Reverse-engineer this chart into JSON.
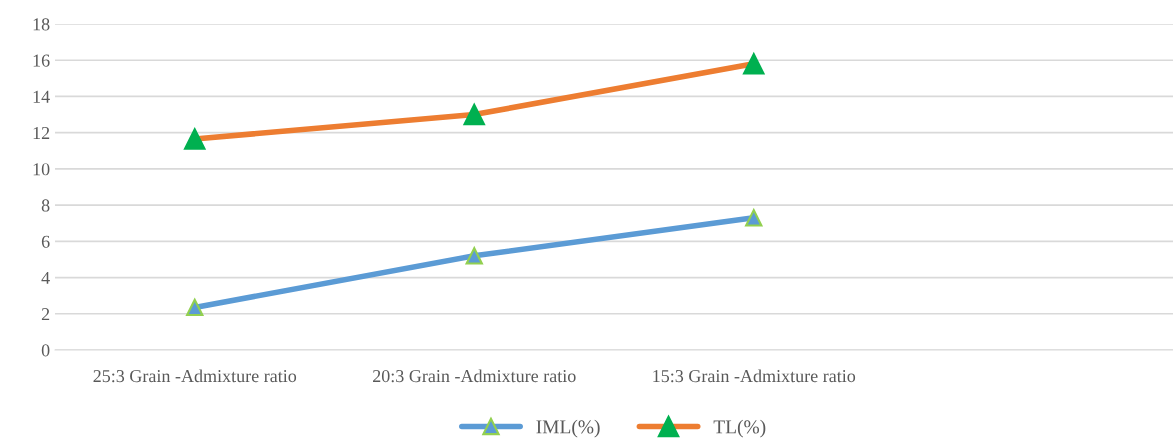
{
  "chart_data": {
    "type": "line",
    "categories": [
      "25:3 Grain -Admixture ratio",
      "20:3 Grain -Admixture ratio",
      "15:3 Grain -Admixture ratio",
      null
    ],
    "series": [
      {
        "name": "IML(%)",
        "color": "#5b9bd5",
        "values": [
          2.35,
          5.2,
          7.3,
          null
        ]
      },
      {
        "name": "TL(%)",
        "color": "#ed7d31",
        "values": [
          11.65,
          13.0,
          15.8,
          null
        ]
      }
    ],
    "ylim": [
      0,
      18
    ],
    "yticks": [
      0,
      2,
      4,
      6,
      8,
      10,
      12,
      14,
      16,
      18
    ],
    "grid": "y",
    "legend": "bottom",
    "marker": "triangle",
    "line_style": "solid"
  }
}
